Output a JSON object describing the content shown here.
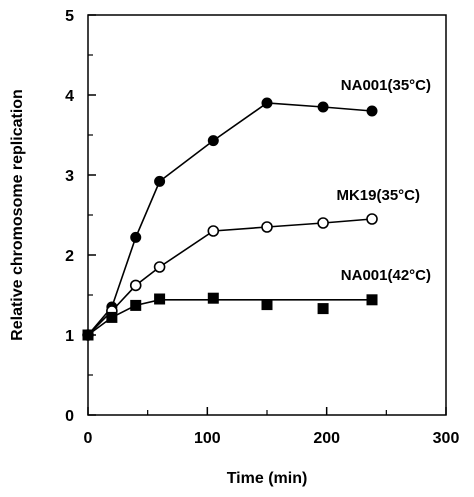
{
  "chart_data": {
    "type": "line",
    "title": "",
    "xlabel": "Time (min)",
    "ylabel": "Relative chromosome replication",
    "xlim": [
      0,
      300
    ],
    "ylim": [
      0,
      5
    ],
    "x_ticks": [
      0,
      100,
      200,
      300
    ],
    "y_ticks": [
      0,
      1,
      2,
      3,
      4,
      5
    ],
    "grid": false,
    "series": [
      {
        "name": "NA001(35°C)",
        "marker": "filled-circle",
        "color": "#000000",
        "x": [
          0,
          20,
          40,
          60,
          105,
          150,
          197,
          238
        ],
        "y": [
          1.0,
          1.35,
          2.22,
          2.92,
          3.43,
          3.9,
          3.85,
          3.8
        ]
      },
      {
        "name": "MK19(35°C)",
        "marker": "open-circle",
        "color": "#000000",
        "x": [
          0,
          20,
          40,
          60,
          105,
          150,
          197,
          238
        ],
        "y": [
          1.0,
          1.3,
          1.62,
          1.85,
          2.3,
          2.35,
          2.4,
          2.45
        ]
      },
      {
        "name": "NA001(42°C)",
        "marker": "filled-square",
        "color": "#000000",
        "x": [
          0,
          20,
          40,
          60,
          105,
          150,
          197,
          238
        ],
        "y": [
          1.0,
          1.22,
          1.37,
          1.45,
          1.46,
          1.38,
          1.33,
          1.44
        ],
        "line_x": [
          0,
          20,
          40,
          60,
          238
        ],
        "line_y": [
          1.0,
          1.22,
          1.37,
          1.44,
          1.44
        ]
      }
    ]
  }
}
